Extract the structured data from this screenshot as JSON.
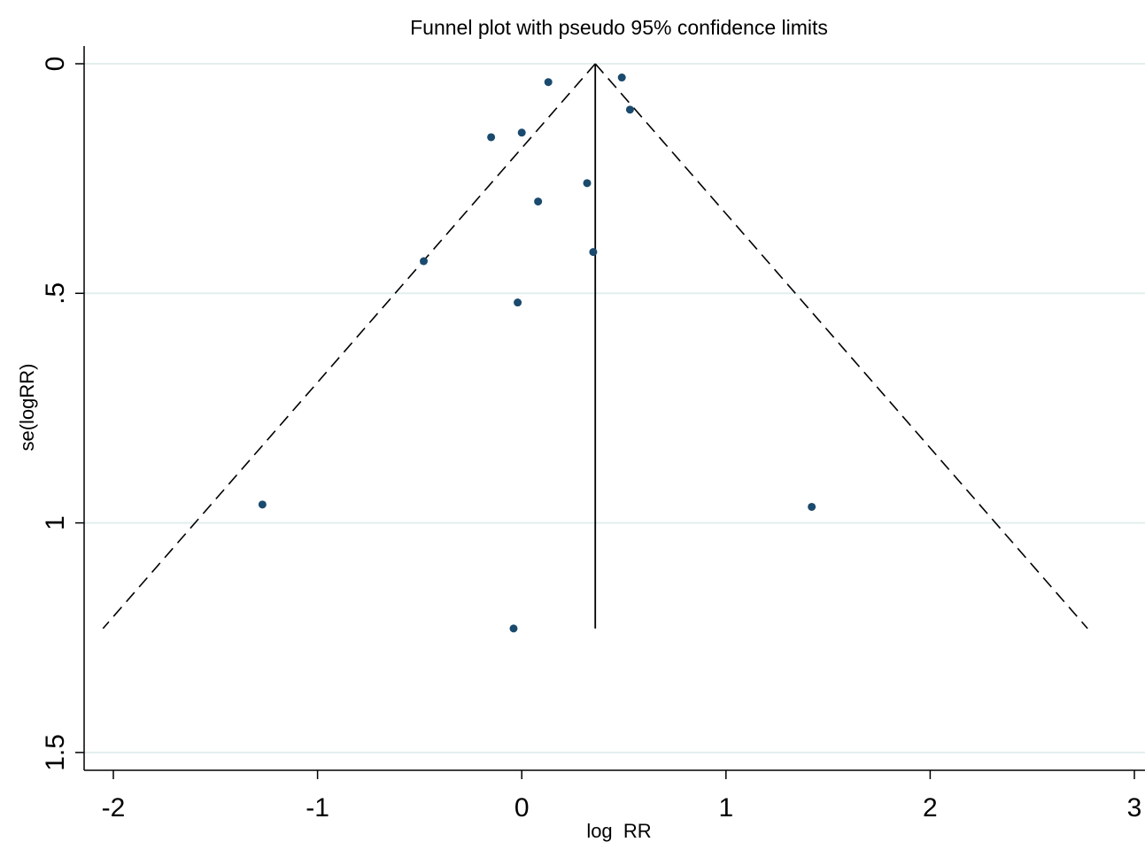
{
  "chart_data": {
    "type": "scatter",
    "title": "Funnel plot with pseudo 95% confidence limits",
    "xlabel": "log  RR",
    "ylabel": "se(logRR)",
    "xlim": [
      -2.05,
      3.05
    ],
    "ylim": [
      0,
      1.5
    ],
    "y_reversed": true,
    "grid": "horizontal",
    "xticks": [
      -2,
      -1,
      0,
      1,
      2,
      3
    ],
    "xtick_labels": [
      "-2",
      "-1",
      "0",
      "1",
      "2",
      "3"
    ],
    "yticks": [
      0,
      0.5,
      1,
      1.5
    ],
    "ytick_labels": [
      "0",
      ".5",
      "1",
      "1.5"
    ],
    "pooled_estimate": 0.36,
    "se_max": 1.23,
    "points": [
      {
        "x": 0.13,
        "y": 0.04
      },
      {
        "x": 0.49,
        "y": 0.03
      },
      {
        "x": 0.53,
        "y": 0.1
      },
      {
        "x": -0.15,
        "y": 0.16
      },
      {
        "x": 0.0,
        "y": 0.15
      },
      {
        "x": 0.32,
        "y": 0.26
      },
      {
        "x": 0.08,
        "y": 0.3
      },
      {
        "x": -0.48,
        "y": 0.43
      },
      {
        "x": 0.35,
        "y": 0.41
      },
      {
        "x": -0.02,
        "y": 0.52
      },
      {
        "x": -1.27,
        "y": 0.96
      },
      {
        "x": 1.42,
        "y": 0.965
      },
      {
        "x": -0.04,
        "y": 1.23
      }
    ],
    "colors": {
      "marker": "#1a4a6e",
      "grid": "#e3eeee",
      "axis": "#000000",
      "lines": "#000000"
    }
  }
}
